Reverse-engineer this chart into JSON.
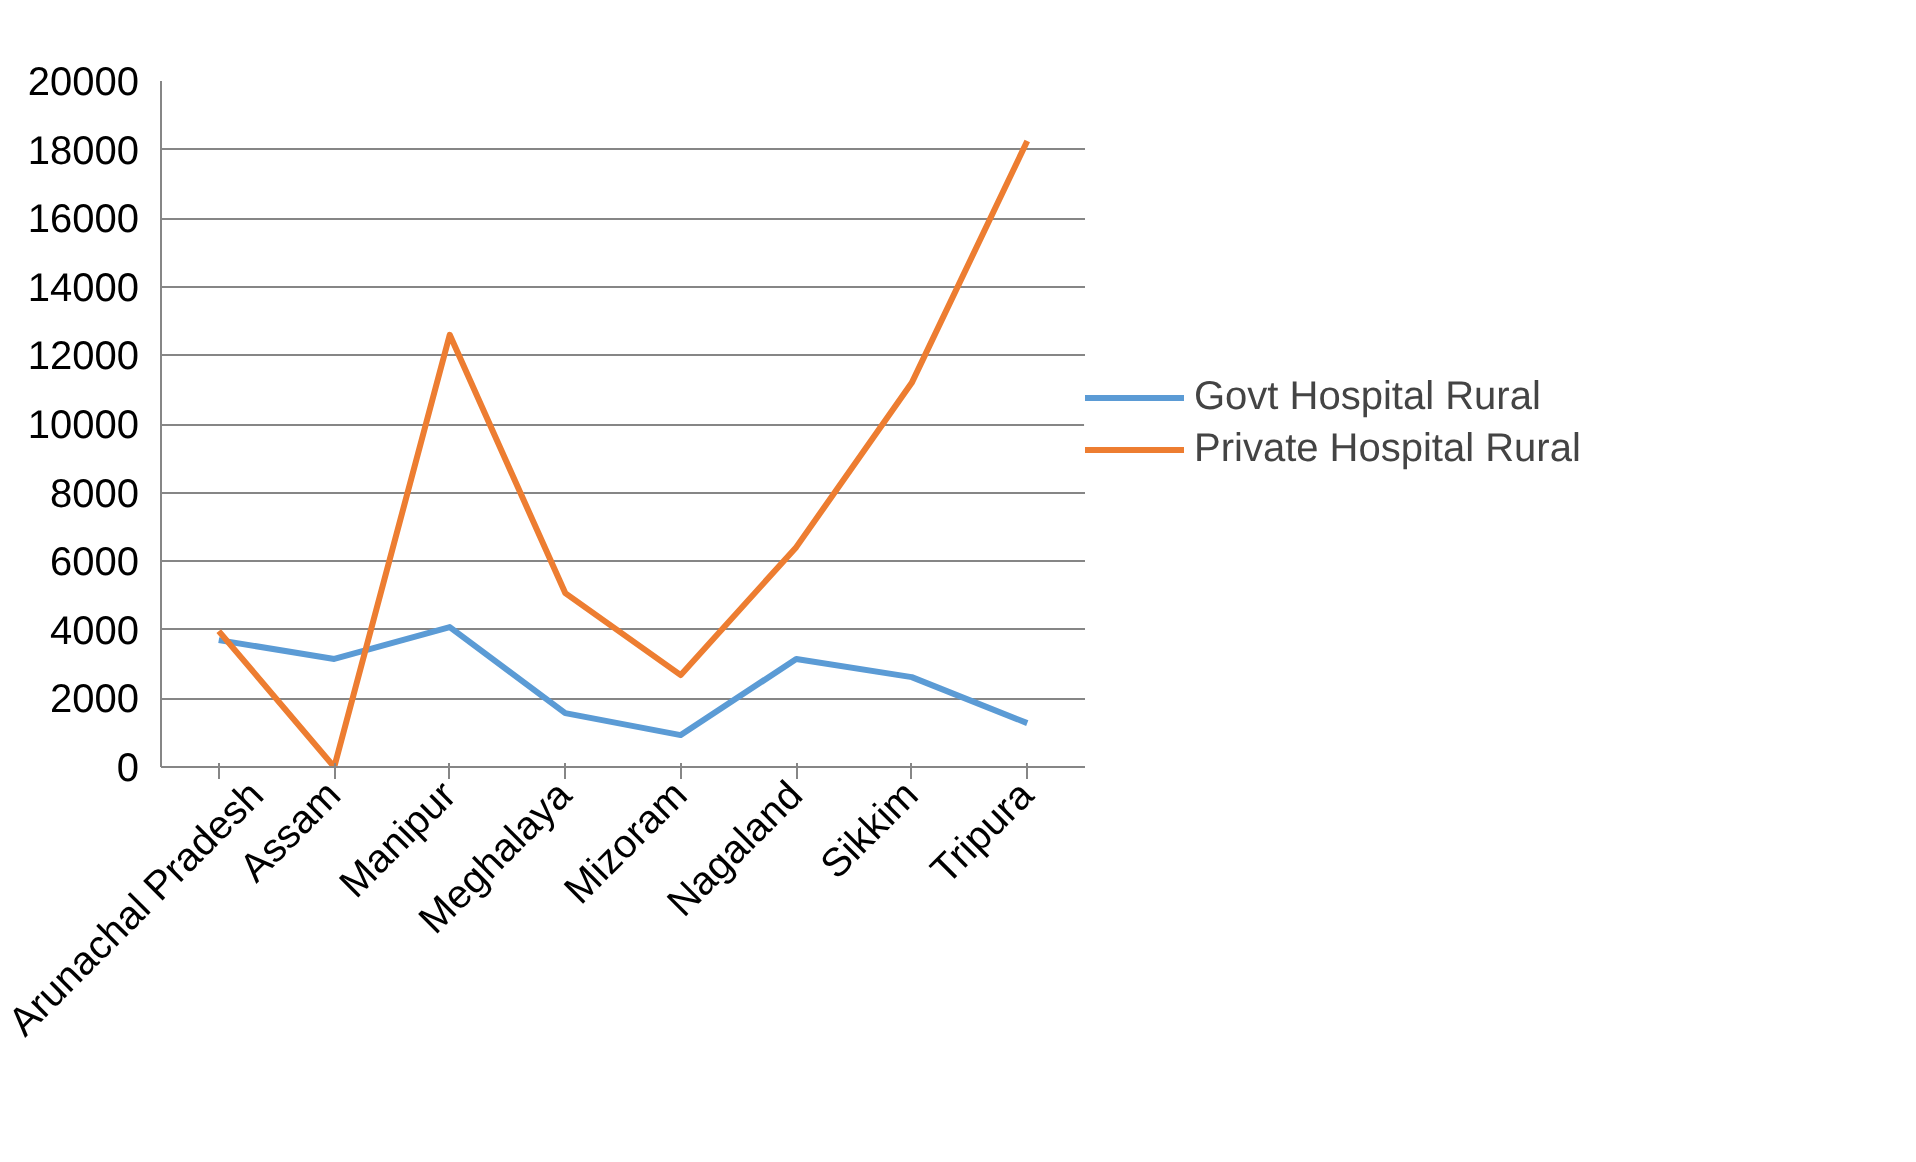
{
  "chart_data": {
    "type": "line",
    "categories": [
      "Arunachal Pradesh",
      "Assam",
      "Manipur",
      "Meghalaya",
      "Mizoram",
      "Nagaland",
      "Sikkim",
      "Tripura"
    ],
    "series": [
      {
        "name": "Govt Hospital Rural",
        "color": "#5b9bd5",
        "values": [
          3700,
          3150,
          4080,
          1570,
          930,
          3150,
          2620,
          1280
        ]
      },
      {
        "name": "Private Hospital Rural",
        "color": "#ed7d31",
        "values": [
          3960,
          0,
          12600,
          5070,
          2680,
          6410,
          11200,
          18250
        ]
      }
    ],
    "ylim": [
      0,
      20000
    ],
    "yticks": [
      0,
      2000,
      4000,
      6000,
      8000,
      10000,
      12000,
      14000,
      16000,
      18000,
      20000
    ],
    "grid": "y",
    "legend": "right",
    "marker": "none",
    "line_style": "solid"
  }
}
